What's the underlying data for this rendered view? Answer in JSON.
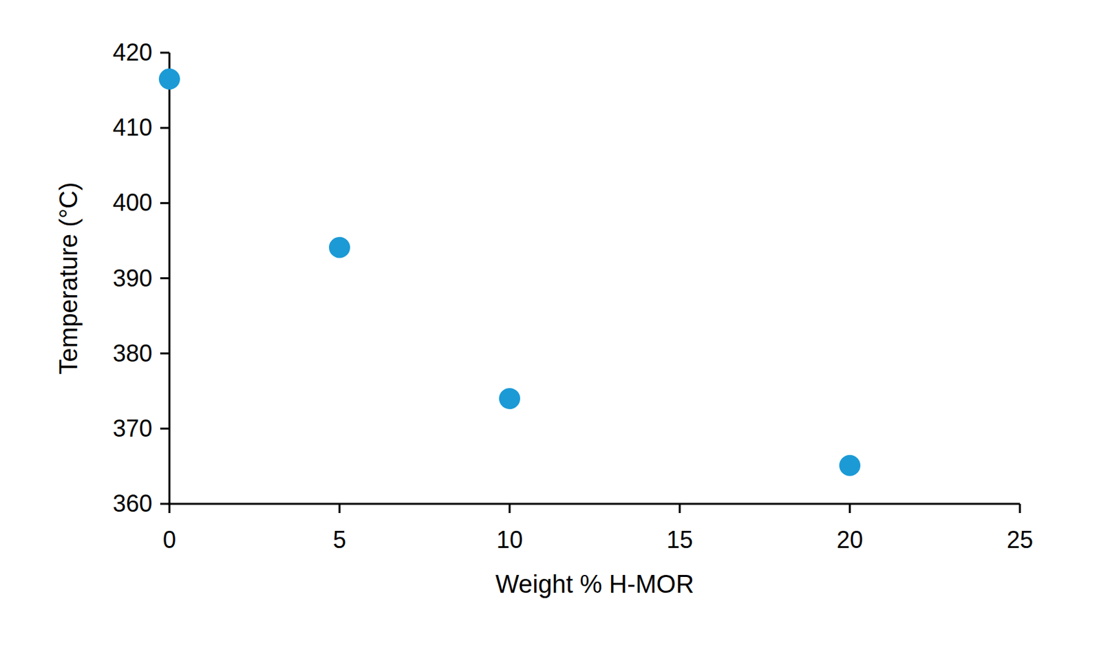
{
  "chart_data": {
    "type": "scatter",
    "x_label": "Weight % H-MOR",
    "y_label": "Temperature (°C)",
    "x": [
      0,
      5,
      10,
      20
    ],
    "values": [
      416.5,
      394.1,
      374.0,
      365.1
    ],
    "color": "#1b9ad6",
    "marker": "circle",
    "xlim": [
      0,
      25
    ],
    "xticks": [
      0,
      5,
      10,
      15,
      20,
      25
    ],
    "ylim": [
      360,
      420
    ],
    "yticks": [
      360,
      370,
      380,
      390,
      400,
      410,
      420
    ],
    "grid": false
  }
}
